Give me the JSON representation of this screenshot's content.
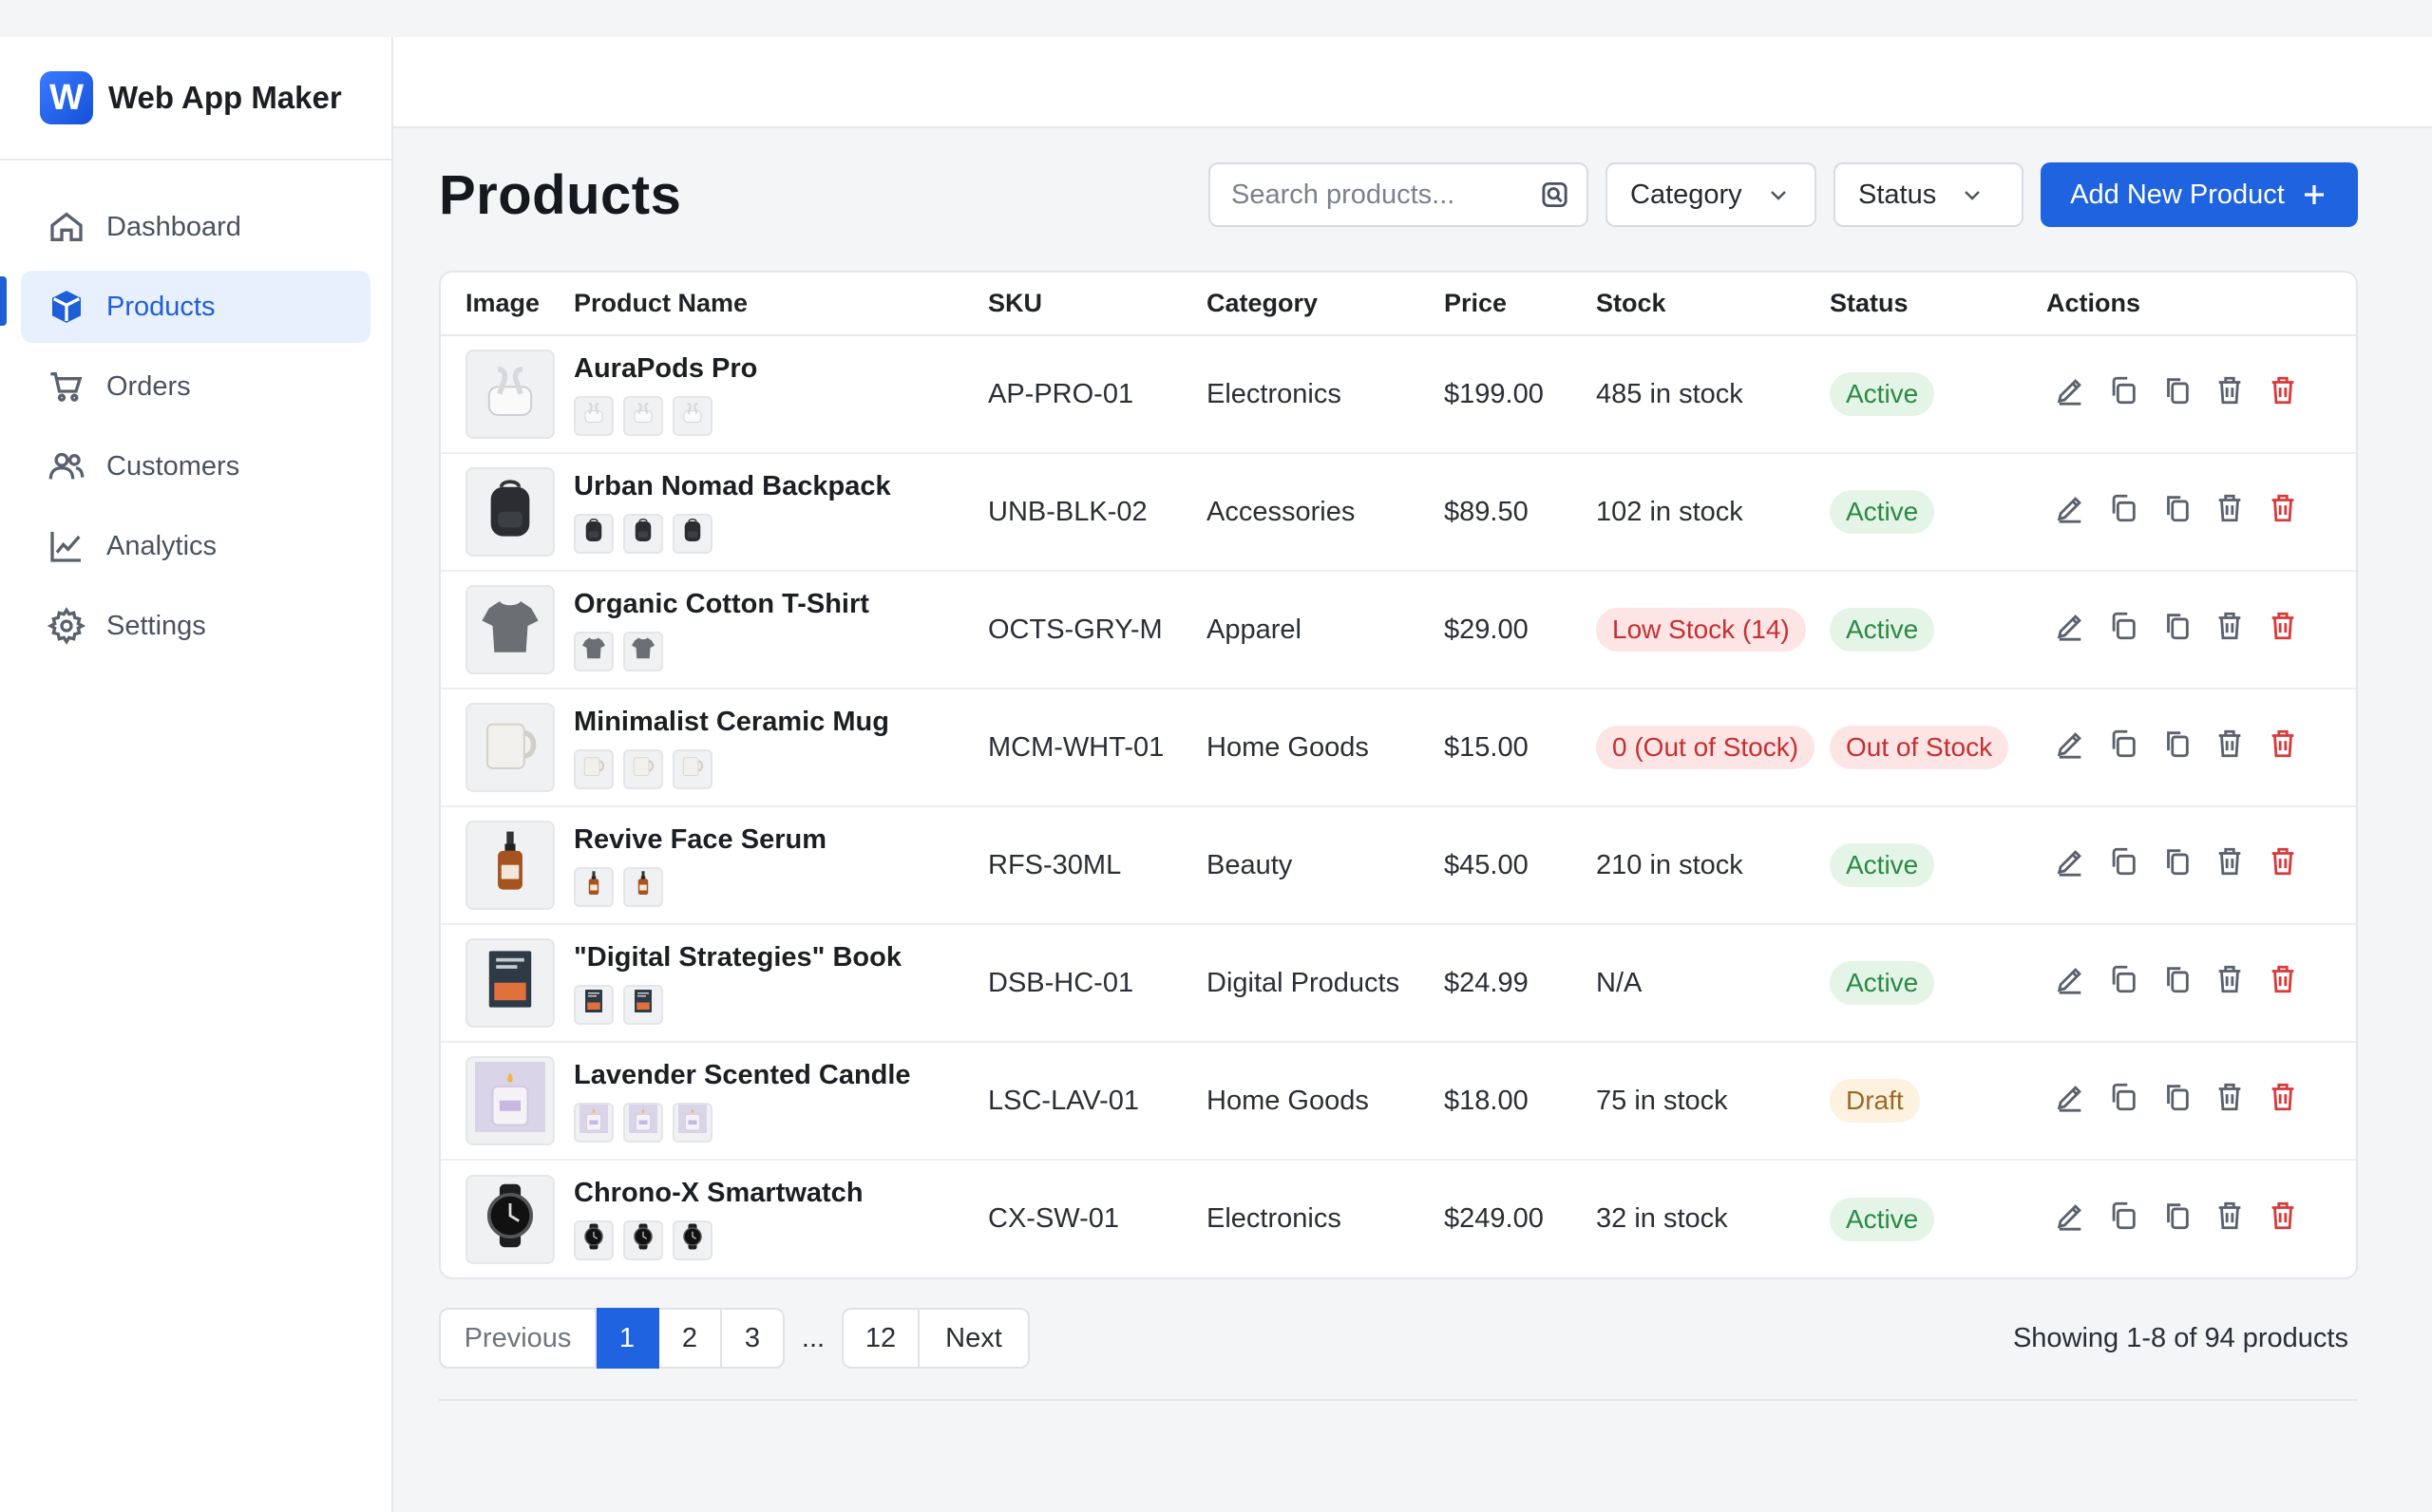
{
  "brand": {
    "logo_letter": "W",
    "name": "Web App Maker"
  },
  "nav": [
    {
      "label": "Dashboard",
      "icon": "home-icon",
      "active": false
    },
    {
      "label": "Products",
      "icon": "box-icon",
      "active": true
    },
    {
      "label": "Orders",
      "icon": "cart-icon",
      "active": false
    },
    {
      "label": "Customers",
      "icon": "users-icon",
      "active": false
    },
    {
      "label": "Analytics",
      "icon": "chart-icon",
      "active": false
    },
    {
      "label": "Settings",
      "icon": "gear-icon",
      "active": false
    }
  ],
  "page": {
    "title": "Products"
  },
  "controls": {
    "search_placeholder": "Search products...",
    "category_label": "Category",
    "status_label": "Status",
    "add_label": "Add New Product"
  },
  "table": {
    "headers": [
      "Image",
      "Product Name",
      "SKU",
      "Category",
      "Price",
      "Stock",
      "Status",
      "Actions"
    ],
    "rows": [
      {
        "name": "AuraPods Pro",
        "sku": "AP-PRO-01",
        "category": "Electronics",
        "price": "$199.00",
        "stock": "485 in stock",
        "stock_badge": false,
        "status": "Active",
        "status_type": "green",
        "icon": "earbuds-icon",
        "thumbs": 3
      },
      {
        "name": "Urban Nomad Backpack",
        "sku": "UNB-BLK-02",
        "category": "Accessories",
        "price": "$89.50",
        "stock": "102 in stock",
        "stock_badge": false,
        "status": "Active",
        "status_type": "green",
        "icon": "backpack-icon",
        "thumbs": 3
      },
      {
        "name": "Organic Cotton T-Shirt",
        "sku": "OCTS-GRY-M",
        "category": "Apparel",
        "price": "$29.00",
        "stock": "Low Stock (14)",
        "stock_badge": true,
        "status": "Active",
        "status_type": "green",
        "icon": "tshirt-icon",
        "thumbs": 2
      },
      {
        "name": "Minimalist Ceramic Mug",
        "sku": "MCM-WHT-01",
        "category": "Home Goods",
        "price": "$15.00",
        "stock": "0 (Out of Stock)",
        "stock_badge": true,
        "status": "Out of Stock",
        "status_type": "red",
        "icon": "mug-icon",
        "thumbs": 3
      },
      {
        "name": "Revive Face Serum",
        "sku": "RFS-30ML",
        "category": "Beauty",
        "price": "$45.00",
        "stock": "210 in stock",
        "stock_badge": false,
        "status": "Active",
        "status_type": "green",
        "icon": "bottle-icon",
        "thumbs": 2
      },
      {
        "name": "\"Digital Strategies\" Book",
        "sku": "DSB-HC-01",
        "category": "Digital Products",
        "price": "$24.99",
        "stock": "N/A",
        "stock_badge": false,
        "status": "Active",
        "status_type": "green",
        "icon": "book-icon",
        "thumbs": 2
      },
      {
        "name": "Lavender Scented Candle",
        "sku": "LSC-LAV-01",
        "category": "Home Goods",
        "price": "$18.00",
        "stock": "75 in stock",
        "stock_badge": false,
        "status": "Draft",
        "status_type": "draft",
        "icon": "candle-icon",
        "thumbs": 3
      },
      {
        "name": "Chrono-X Smartwatch",
        "sku": "CX-SW-01",
        "category": "Electronics",
        "price": "$249.00",
        "stock": "32 in stock",
        "stock_badge": false,
        "status": "Active",
        "status_type": "green",
        "icon": "watch-icon",
        "thumbs": 3
      }
    ],
    "actions": [
      "edit-icon",
      "duplicate-icon",
      "copy-icon",
      "delete-icon",
      "delete-red-icon"
    ]
  },
  "pagination": {
    "prev": "Previous",
    "pages": [
      "1",
      "2",
      "3"
    ],
    "ellipsis": "...",
    "last": "12",
    "next": "Next",
    "showing": "Showing 1-8 of 94 products"
  },
  "colors": {
    "accent": "#1f63e0",
    "active_bg": "#e8f0fd",
    "danger": "#d83a3a"
  }
}
